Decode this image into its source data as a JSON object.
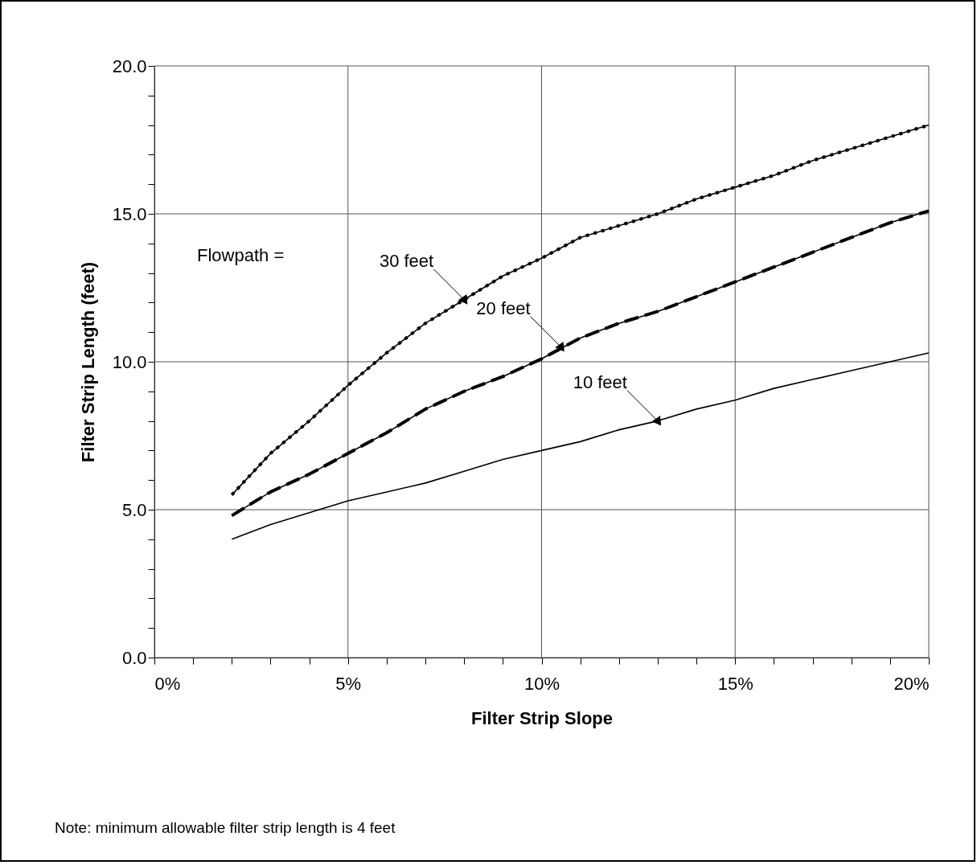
{
  "chart_data": {
    "type": "line",
    "xlabel": "Filter Strip Slope",
    "ylabel": "Filter Strip Length (feet)",
    "x": [
      2,
      3,
      4,
      5,
      6,
      7,
      8,
      9,
      10,
      11,
      12,
      13,
      14,
      15,
      16,
      17,
      18,
      19,
      20
    ],
    "series": [
      {
        "color": "#000000",
        "line_style": "solid",
        "values": [
          5.5,
          6.9,
          8.0,
          9.2,
          10.3,
          11.3,
          12.1,
          12.9,
          13.5,
          14.2,
          14.6,
          15.0,
          15.5,
          15.9,
          16.3,
          16.8,
          17.2,
          17.6,
          18.0
        ]
      },
      {
        "color": "#000000",
        "line_style": "dotted",
        "values": [
          5.5,
          6.9,
          8.0,
          9.2,
          10.3,
          11.3,
          12.1,
          12.9,
          13.5,
          14.2,
          14.6,
          15.0,
          15.5,
          15.9,
          16.3,
          16.8,
          17.2,
          17.6,
          18.0
        ]
      },
      {
        "color": "#000000",
        "line_style": "solid",
        "values": [
          4.8,
          5.6,
          6.2,
          6.9,
          7.6,
          8.4,
          9.0,
          9.5,
          10.1,
          10.8,
          11.3,
          11.7,
          12.2,
          12.7,
          13.2,
          13.7,
          14.2,
          14.7,
          15.1
        ]
      },
      {
        "color": "#000000",
        "line_style": "dashed",
        "values": [
          4.8,
          5.6,
          6.2,
          6.9,
          7.6,
          8.4,
          9.0,
          9.5,
          10.1,
          10.8,
          11.3,
          11.7,
          12.2,
          12.7,
          13.2,
          13.7,
          14.2,
          14.7,
          15.1
        ]
      },
      {
        "color": "#000000",
        "line_style": "solid",
        "values": [
          4.0,
          4.5,
          4.9,
          5.3,
          5.6,
          5.9,
          6.3,
          6.7,
          7.0,
          7.3,
          7.7,
          8.0,
          8.4,
          8.7,
          9.1,
          9.4,
          9.7,
          10.0,
          10.3
        ]
      }
    ],
    "xlim": [
      0,
      20
    ],
    "xticks": [
      {
        "value": 0,
        "label": "0%"
      },
      {
        "value": 1,
        "label": null
      },
      {
        "value": 2,
        "label": null
      },
      {
        "value": 3,
        "label": null
      },
      {
        "value": 4,
        "label": null
      },
      {
        "value": 5,
        "label": "5%"
      },
      {
        "value": 6,
        "label": null
      },
      {
        "value": 7,
        "label": null
      },
      {
        "value": 8,
        "label": null
      },
      {
        "value": 9,
        "label": null
      },
      {
        "value": 10,
        "label": "10%"
      },
      {
        "value": 11,
        "label": null
      },
      {
        "value": 12,
        "label": null
      },
      {
        "value": 13,
        "label": null
      },
      {
        "value": 14,
        "label": null
      },
      {
        "value": 15,
        "label": "15%"
      },
      {
        "value": 16,
        "label": null
      },
      {
        "value": 17,
        "label": null
      },
      {
        "value": 18,
        "label": null
      },
      {
        "value": 19,
        "label": null
      },
      {
        "value": 20,
        "label": "20%"
      }
    ],
    "ylim": [
      0,
      20
    ],
    "yticks": [
      {
        "value": 0,
        "label": "0.0"
      },
      {
        "value": 1,
        "label": null
      },
      {
        "value": 2,
        "label": null
      },
      {
        "value": 3,
        "label": null
      },
      {
        "value": 4,
        "label": null
      },
      {
        "value": 5,
        "label": "5.0"
      },
      {
        "value": 6,
        "label": null
      },
      {
        "value": 7,
        "label": null
      },
      {
        "value": 8,
        "label": null
      },
      {
        "value": 9,
        "label": null
      },
      {
        "value": 10,
        "label": "10.0"
      },
      {
        "value": 11,
        "label": null
      },
      {
        "value": 12,
        "label": null
      },
      {
        "value": 13,
        "label": null
      },
      {
        "value": 14,
        "label": null
      },
      {
        "value": 15,
        "label": "15.0"
      },
      {
        "value": 16,
        "label": null
      },
      {
        "value": 17,
        "label": null
      },
      {
        "value": 18,
        "label": null
      },
      {
        "value": 19,
        "label": null
      },
      {
        "value": 20,
        "label": "20.0"
      }
    ],
    "grid": true,
    "annotations": [
      "Flowpath =",
      {
        "text": "30 feet",
        "x": 8,
        "y": 12.1
      },
      {
        "text": "20 feet",
        "x": 10.5,
        "y": 10.5
      },
      {
        "text": "10 feet",
        "x": 13,
        "y": 8.0
      },
      "Note: minimum allowable filter strip length is 4 feet"
    ]
  }
}
